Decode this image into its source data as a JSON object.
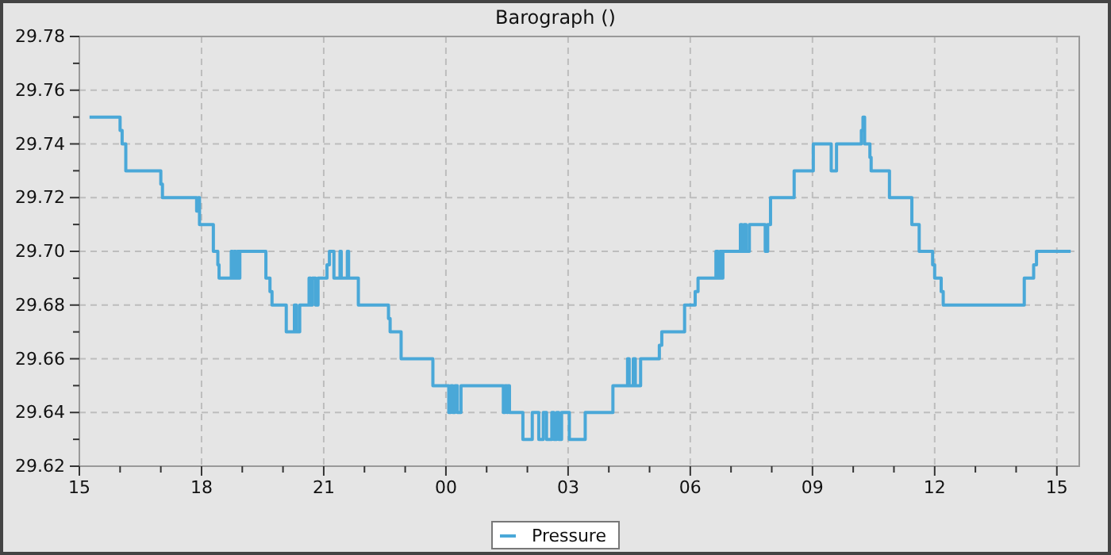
{
  "chart_data": {
    "type": "step",
    "title": "Barograph ()",
    "legend": "bottom",
    "grid": true,
    "line_style": "solid",
    "xlim": [
      15,
      39.55
    ],
    "ylim": [
      29.62,
      29.78
    ],
    "xticks": [
      {
        "value": 15,
        "label": "15"
      },
      {
        "value": 16,
        "label": null
      },
      {
        "value": 17,
        "label": null
      },
      {
        "value": 18,
        "label": "18"
      },
      {
        "value": 19,
        "label": null
      },
      {
        "value": 20,
        "label": null
      },
      {
        "value": 21,
        "label": "21"
      },
      {
        "value": 22,
        "label": null
      },
      {
        "value": 23,
        "label": null
      },
      {
        "value": 24,
        "label": "00"
      },
      {
        "value": 25,
        "label": null
      },
      {
        "value": 26,
        "label": null
      },
      {
        "value": 27,
        "label": "03"
      },
      {
        "value": 28,
        "label": null
      },
      {
        "value": 29,
        "label": null
      },
      {
        "value": 30,
        "label": "06"
      },
      {
        "value": 31,
        "label": null
      },
      {
        "value": 32,
        "label": null
      },
      {
        "value": 33,
        "label": "09"
      },
      {
        "value": 34,
        "label": null
      },
      {
        "value": 35,
        "label": null
      },
      {
        "value": 36,
        "label": "12"
      },
      {
        "value": 37,
        "label": null
      },
      {
        "value": 38,
        "label": null
      },
      {
        "value": 39,
        "label": "15"
      }
    ],
    "yticks": [
      {
        "value": 29.62,
        "label": "29.62"
      },
      {
        "value": 29.63,
        "label": null
      },
      {
        "value": 29.64,
        "label": "29.64"
      },
      {
        "value": 29.65,
        "label": null
      },
      {
        "value": 29.66,
        "label": "29.66"
      },
      {
        "value": 29.67,
        "label": null
      },
      {
        "value": 29.68,
        "label": "29.68"
      },
      {
        "value": 29.69,
        "label": null
      },
      {
        "value": 29.7,
        "label": "29.70"
      },
      {
        "value": 29.71,
        "label": null
      },
      {
        "value": 29.72,
        "label": "29.72"
      },
      {
        "value": 29.73,
        "label": null
      },
      {
        "value": 29.74,
        "label": "29.74"
      },
      {
        "value": 29.75,
        "label": null
      },
      {
        "value": 29.76,
        "label": "29.76"
      },
      {
        "value": 29.77,
        "label": null
      },
      {
        "value": 29.78,
        "label": "29.78"
      }
    ],
    "series": [
      {
        "name": "Pressure",
        "color": "#4aa8d8",
        "x": [
          15.25,
          16.0,
          16.05,
          16.14,
          17.0,
          17.04,
          17.88,
          17.92,
          17.95,
          18.29,
          18.4,
          18.43,
          18.73,
          18.76,
          18.8,
          18.84,
          18.88,
          18.91,
          18.94,
          19.58,
          19.68,
          19.73,
          20.08,
          20.28,
          20.33,
          20.41,
          20.64,
          20.68,
          20.72,
          20.8,
          20.86,
          21.08,
          21.14,
          21.25,
          21.4,
          21.43,
          21.58,
          21.61,
          21.85,
          22.59,
          22.63,
          22.9,
          23.68,
          24.07,
          24.12,
          24.17,
          24.22,
          24.28,
          24.37,
          25.41,
          25.45,
          25.5,
          25.52,
          25.56,
          25.89,
          26.12,
          26.28,
          26.39,
          26.47,
          26.6,
          26.65,
          26.72,
          26.77,
          26.84,
          26.9,
          27.03,
          27.42,
          28.1,
          28.46,
          28.5,
          28.6,
          28.65,
          28.78,
          29.24,
          29.3,
          29.86,
          30.12,
          30.19,
          30.63,
          30.68,
          30.73,
          30.77,
          30.8,
          31.23,
          31.27,
          31.32,
          31.37,
          31.45,
          31.84,
          31.9,
          31.97,
          32.55,
          33.02,
          33.46,
          33.59,
          34.2,
          34.24,
          34.28,
          34.41,
          34.44,
          34.89,
          35.44,
          35.62,
          35.95,
          36.0,
          36.16,
          36.21,
          38.2,
          38.43,
          38.5,
          39.34
        ],
        "values": [
          29.75,
          29.745,
          29.74,
          29.73,
          29.725,
          29.72,
          29.715,
          29.72,
          29.71,
          29.7,
          29.695,
          29.69,
          29.7,
          29.69,
          29.7,
          29.69,
          29.7,
          29.69,
          29.7,
          29.69,
          29.685,
          29.68,
          29.67,
          29.68,
          29.67,
          29.68,
          29.69,
          29.68,
          29.69,
          29.68,
          29.69,
          29.695,
          29.7,
          29.69,
          29.7,
          29.69,
          29.7,
          29.69,
          29.68,
          29.675,
          29.67,
          29.66,
          29.65,
          29.64,
          29.65,
          29.64,
          29.65,
          29.64,
          29.65,
          29.64,
          29.65,
          29.64,
          29.65,
          29.64,
          29.63,
          29.64,
          29.63,
          29.64,
          29.63,
          29.64,
          29.63,
          29.64,
          29.63,
          29.64,
          29.64,
          29.63,
          29.64,
          29.65,
          29.66,
          29.65,
          29.66,
          29.65,
          29.66,
          29.665,
          29.67,
          29.68,
          29.685,
          29.69,
          29.7,
          29.69,
          29.7,
          29.69,
          29.7,
          29.71,
          29.7,
          29.71,
          29.7,
          29.71,
          29.7,
          29.71,
          29.72,
          29.73,
          29.74,
          29.73,
          29.74,
          29.745,
          29.75,
          29.74,
          29.735,
          29.73,
          29.72,
          29.71,
          29.7,
          29.695,
          29.69,
          29.685,
          29.68,
          29.69,
          29.695,
          29.7,
          29.7
        ]
      }
    ]
  }
}
